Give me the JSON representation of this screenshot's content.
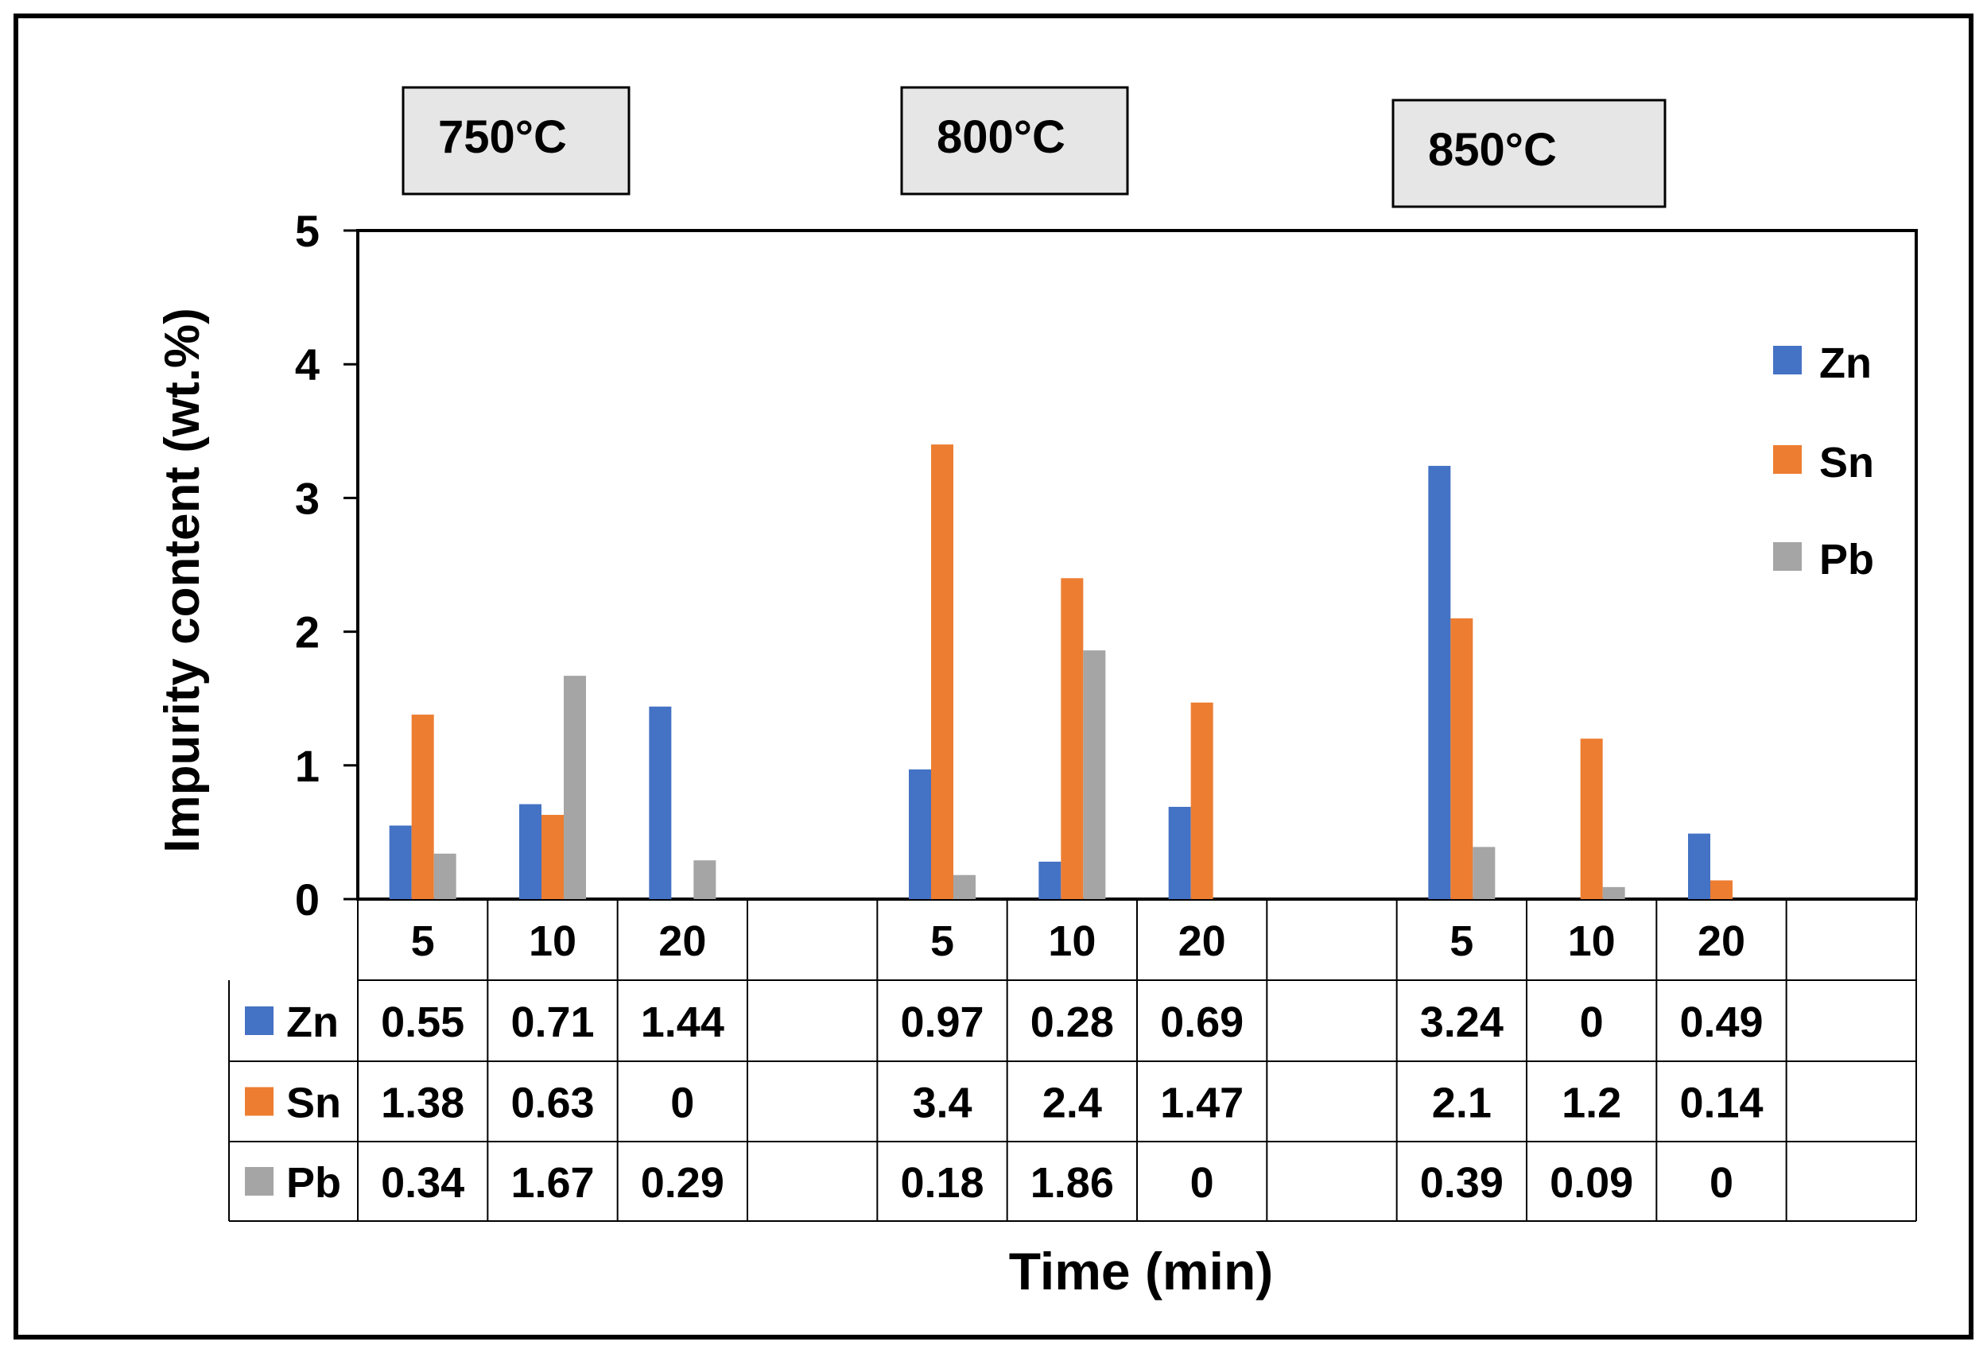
{
  "chart_data": {
    "type": "bar",
    "title": "",
    "xlabel": "Time (min)",
    "ylabel": "Impurity content (wt.%)",
    "ylim": [
      0,
      5
    ],
    "yticks": [
      "0",
      "1",
      "2",
      "3",
      "4",
      "5"
    ],
    "grid": false,
    "legend": "right",
    "groups": [
      {
        "label": "750°C",
        "times": [
          "5",
          "10",
          "20"
        ]
      },
      {
        "label": "800°C",
        "times": [
          "5",
          "10",
          "20"
        ]
      },
      {
        "label": "850°C",
        "times": [
          "5",
          "10",
          "20"
        ]
      }
    ],
    "categories": [
      "5",
      "10",
      "20",
      "",
      "5",
      "10",
      "20",
      "",
      "5",
      "10",
      "20",
      ""
    ],
    "series": [
      {
        "name": "Zn",
        "color": "#4472C4",
        "values": [
          0.55,
          0.71,
          1.44,
          null,
          0.97,
          0.28,
          0.69,
          null,
          3.24,
          0,
          0.49,
          null
        ],
        "labels": [
          "0.55",
          "0.71",
          "1.44",
          "",
          "0.97",
          "0.28",
          "0.69",
          "",
          "3.24",
          "0",
          "0.49",
          ""
        ]
      },
      {
        "name": "Sn",
        "color": "#ED7D31",
        "values": [
          1.38,
          0.63,
          0,
          null,
          3.4,
          2.4,
          1.47,
          null,
          2.1,
          1.2,
          0.14,
          null
        ],
        "labels": [
          "1.38",
          "0.63",
          "0",
          "",
          "3.4",
          "2.4",
          "1.47",
          "",
          "2.1",
          "1.2",
          "0.14",
          ""
        ]
      },
      {
        "name": "Pb",
        "color": "#A5A5A5",
        "values": [
          0.34,
          1.67,
          0.29,
          null,
          0.18,
          1.86,
          0,
          null,
          0.39,
          0.09,
          0,
          null
        ],
        "labels": [
          "0.34",
          "1.67",
          "0.29",
          "",
          "0.18",
          "1.86",
          "0",
          "",
          "0.39",
          "0.09",
          "0",
          ""
        ]
      }
    ]
  }
}
